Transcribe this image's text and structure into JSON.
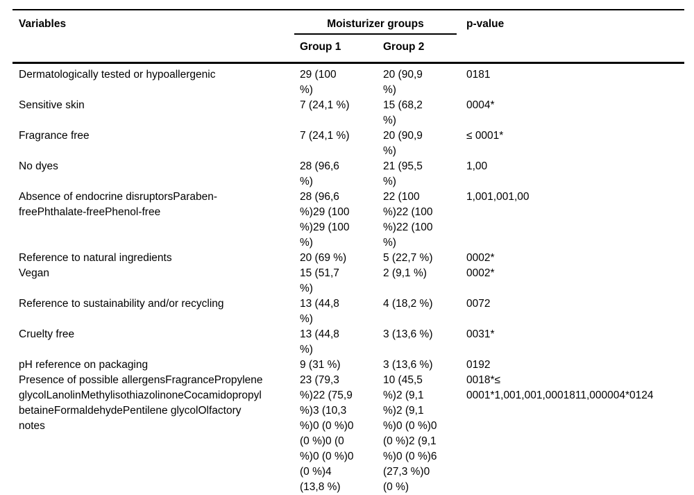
{
  "colors": {
    "background": "#ffffff",
    "text": "#000000",
    "rule": "#000000"
  },
  "table": {
    "header": {
      "variables": "Variables",
      "group_span": "Moisturizer groups",
      "group1": "Group 1",
      "group2": "Group 2",
      "pvalue": "p-value"
    },
    "rows": [
      {
        "variable": "Dermatologically tested or hypoallergenic",
        "group1": "29 (100\n%)",
        "group2": "20 (90,9\n%)",
        "pvalue": "0181"
      },
      {
        "variable": "Sensitive skin",
        "group1": "7 (24,1 %)",
        "group2": "15 (68,2\n%)",
        "pvalue": "0004*"
      },
      {
        "variable": "Fragrance free",
        "group1": "7 (24,1 %)",
        "group2": "20 (90,9\n%)",
        "pvalue": "≤ 0001*"
      },
      {
        "variable": "No dyes",
        "group1": "28 (96,6\n%)",
        "group2": "21 (95,5\n%)",
        "pvalue": "1,00"
      },
      {
        "variable": "Absence of endocrine disruptorsParaben-\nfreePhthalate-freePhenol-free",
        "group1": "28 (96,6\n%)29 (100\n%)29 (100\n%)",
        "group2": "22 (100\n%)22 (100\n%)22 (100\n%)",
        "pvalue": "1,001,001,00"
      },
      {
        "variable": "Reference to natural ingredients",
        "group1": "20 (69 %)",
        "group2": "5 (22,7 %)",
        "pvalue": "0002*"
      },
      {
        "variable": "Vegan",
        "group1": "15 (51,7\n%)",
        "group2": "2 (9,1 %)",
        "pvalue": "0002*"
      },
      {
        "variable": "Reference to sustainability and/or recycling",
        "group1": "13 (44,8\n%)",
        "group2": "4 (18,2 %)",
        "pvalue": "0072"
      },
      {
        "variable": "Cruelty free",
        "group1": "13 (44,8\n%)",
        "group2": "3 (13,6 %)",
        "pvalue": "0031*"
      },
      {
        "variable": "pH reference on packaging",
        "group1": "9 (31 %)",
        "group2": "3 (13,6 %)",
        "pvalue": "0192"
      },
      {
        "variable": "Presence of possible allergensFragrancePropylene\nglycolLanolinMethylisothiazolinoneCocamidopropyl\nbetaineFormaldehydePentilene glycolOlfactory\nnotes",
        "group1": "23 (79,3\n%)22 (75,9\n%)3 (10,3\n%)0 (0 %)0\n(0 %)0 (0\n%)0 (0 %)0\n(0 %)4\n(13,8 %)",
        "group2": "10 (45,5\n%)2 (9,1\n%)2 (9,1\n%)0 (0 %)0\n(0 %)2 (9,1\n%)0 (0 %)6\n(27,3 %)0\n(0 %)",
        "pvalue": "0018*≤\n0001*1,001,001,0001811,000004*0124"
      }
    ]
  }
}
